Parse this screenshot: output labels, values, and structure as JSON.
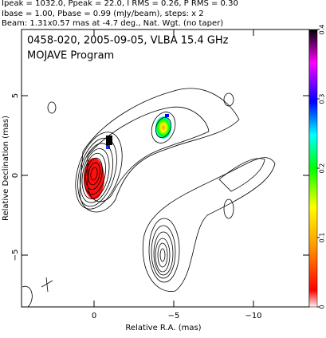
{
  "chart_data": {
    "type": "contour",
    "header": [
      "Ipeak = 1032.0, Ppeak = 22.0, I RMS = 0.26, P RMS = 0.30",
      "Ibase = 1.00, Pbase = 0.99 (mJy/beam), steps: x 2",
      "Beam: 1.31x0.57 mas at -4.7 deg., Nat. Wgt. (no taper)"
    ],
    "title": "0458-020, 2005-09-05, VLBA 15.4 GHz",
    "subtitle": "MOJAVE Program",
    "x_label": "Relative R.A. (mas)",
    "y_label": "Relative Declination (mas)",
    "xlim": [
      4.55,
      -13.5
    ],
    "xticks": [
      0,
      {
        "value": -5,
        "label": "−5"
      },
      {
        "value": -10,
        "label": "−10"
      }
    ],
    "ylim": [
      -8.25,
      9.15
    ],
    "yticks": [
      {
        "value": -5,
        "label": "−5"
      },
      0,
      5
    ],
    "colorbar_lim": [
      0,
      0.4
    ],
    "colorbar_ticks": [
      0,
      0.1,
      0.2,
      0.3,
      0.4
    ]
  }
}
